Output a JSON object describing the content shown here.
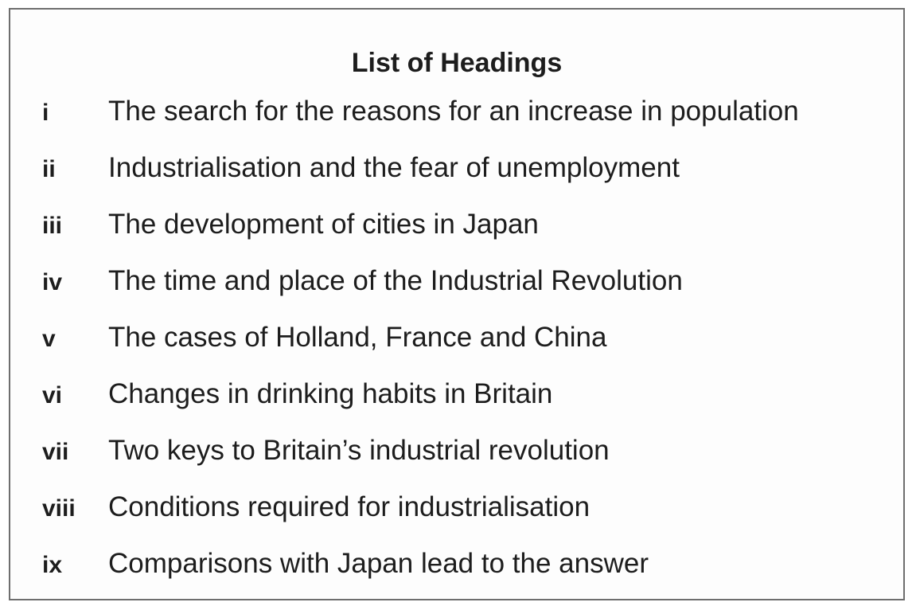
{
  "title": "List of Headings",
  "headings": [
    {
      "numeral": "i",
      "text": "The search for the reasons for an increase in population"
    },
    {
      "numeral": "ii",
      "text": "Industrialisation and the fear of unemployment"
    },
    {
      "numeral": "iii",
      "text": "The development of cities in Japan"
    },
    {
      "numeral": "iv",
      "text": "The time and place of the Industrial Revolution"
    },
    {
      "numeral": "v",
      "text": "The cases of Holland, France and China"
    },
    {
      "numeral": "vi",
      "text": "Changes in drinking habits in Britain"
    },
    {
      "numeral": "vii",
      "text": "Two keys to Britain’s industrial revolution"
    },
    {
      "numeral": "viii",
      "text": "Conditions required for industrialisation"
    },
    {
      "numeral": "ix",
      "text": "Comparisons with Japan lead to the answer"
    }
  ]
}
